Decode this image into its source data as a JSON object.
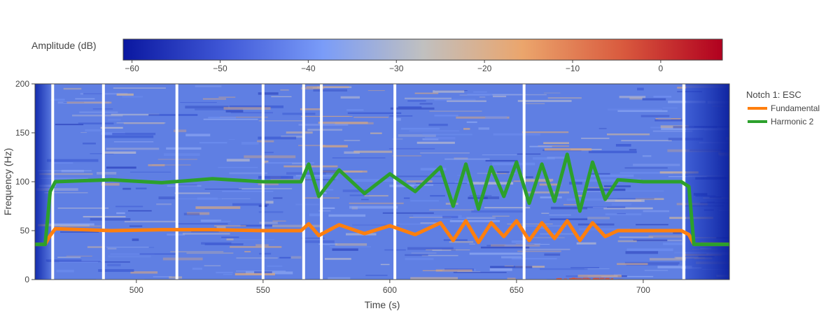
{
  "chart_data": {
    "type": "line",
    "background": "spectrogram",
    "xlabel": "Time (s)",
    "ylabel": "Frequency (Hz)",
    "xlim": [
      460,
      734
    ],
    "ylim": [
      0,
      200
    ],
    "x_ticks": [
      500,
      550,
      600,
      650,
      700
    ],
    "y_ticks": [
      0,
      50,
      100,
      150,
      200
    ],
    "grid": false,
    "colorbar": {
      "title": "Amplitude (dB)",
      "range": [
        -61,
        7
      ],
      "ticks": [
        -60,
        -50,
        -40,
        -30,
        -20,
        -10,
        0
      ],
      "colorscale": [
        "#0a17a0",
        "#3f57d6",
        "#7a9cf8",
        "#c0c0c0",
        "#eba56c",
        "#d95a3e",
        "#b1001f"
      ]
    },
    "gaps_at_time": [
      467,
      487,
      516,
      550,
      566,
      573,
      602,
      653,
      716
    ],
    "legend": {
      "title": "Notch 1: ESC",
      "placement": "right"
    },
    "series": [
      {
        "name": "Fundamental",
        "color": "#ff7f0e",
        "points": [
          [
            460,
            36
          ],
          [
            464,
            36
          ],
          [
            466,
            45
          ],
          [
            468,
            52
          ],
          [
            490,
            50
          ],
          [
            510,
            51
          ],
          [
            530,
            51
          ],
          [
            550,
            50
          ],
          [
            565,
            50
          ],
          [
            568,
            57
          ],
          [
            572,
            45
          ],
          [
            580,
            56
          ],
          [
            590,
            47
          ],
          [
            600,
            55
          ],
          [
            610,
            46
          ],
          [
            620,
            58
          ],
          [
            625,
            40
          ],
          [
            630,
            60
          ],
          [
            635,
            38
          ],
          [
            640,
            58
          ],
          [
            645,
            44
          ],
          [
            650,
            60
          ],
          [
            655,
            40
          ],
          [
            660,
            58
          ],
          [
            665,
            42
          ],
          [
            670,
            60
          ],
          [
            675,
            40
          ],
          [
            680,
            58
          ],
          [
            685,
            44
          ],
          [
            690,
            50
          ],
          [
            700,
            50
          ],
          [
            715,
            50
          ],
          [
            718,
            46
          ],
          [
            720,
            36
          ],
          [
            734,
            36
          ]
        ]
      },
      {
        "name": "Harmonic 2",
        "color": "#2ca02c",
        "points": [
          [
            460,
            36
          ],
          [
            464,
            36
          ],
          [
            466,
            90
          ],
          [
            468,
            100
          ],
          [
            490,
            102
          ],
          [
            510,
            99
          ],
          [
            530,
            103
          ],
          [
            550,
            100
          ],
          [
            565,
            100
          ],
          [
            568,
            118
          ],
          [
            572,
            85
          ],
          [
            580,
            112
          ],
          [
            590,
            88
          ],
          [
            600,
            108
          ],
          [
            610,
            90
          ],
          [
            620,
            115
          ],
          [
            625,
            75
          ],
          [
            630,
            118
          ],
          [
            635,
            72
          ],
          [
            640,
            115
          ],
          [
            645,
            85
          ],
          [
            650,
            120
          ],
          [
            655,
            78
          ],
          [
            660,
            118
          ],
          [
            665,
            80
          ],
          [
            670,
            128
          ],
          [
            675,
            70
          ],
          [
            680,
            120
          ],
          [
            685,
            82
          ],
          [
            690,
            102
          ],
          [
            700,
            100
          ],
          [
            715,
            100
          ],
          [
            718,
            95
          ],
          [
            720,
            36
          ],
          [
            734,
            36
          ]
        ]
      }
    ]
  }
}
